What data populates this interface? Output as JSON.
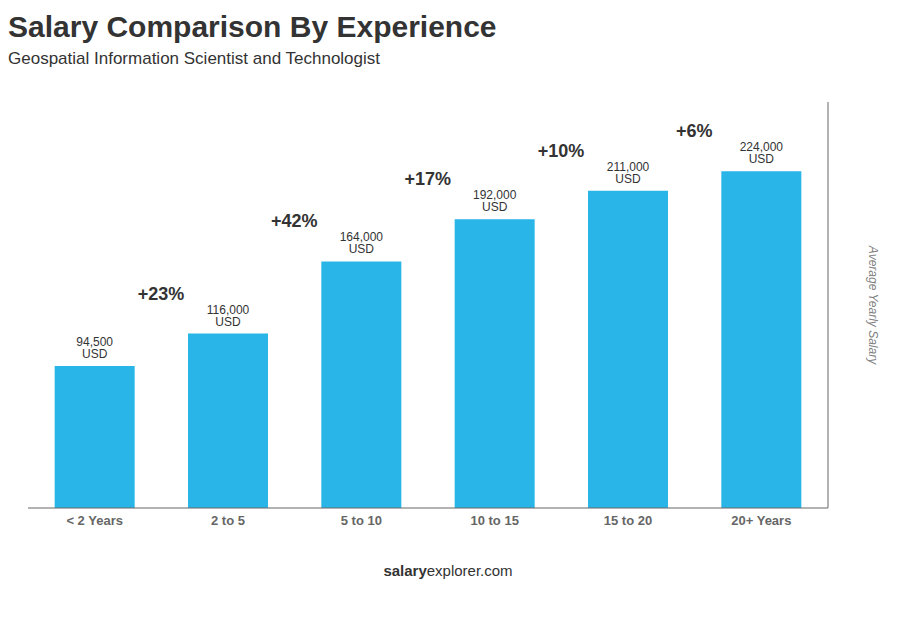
{
  "chart_data": {
    "type": "bar",
    "title": "Salary Comparison By Experience",
    "subtitle": "Geospatial Information Scientist and Technologist",
    "y_label": "Average Yearly Salary",
    "categories": [
      "< 2 Years",
      "2 to 5",
      "5 to 10",
      "10 to 15",
      "15 to 20",
      "20+ Years"
    ],
    "values": [
      94500,
      116000,
      164000,
      192000,
      211000,
      224000
    ],
    "value_labels": [
      "94,500 USD",
      "116,000 USD",
      "164,000 USD",
      "192,000 USD",
      "211,000 USD",
      "224,000 USD"
    ],
    "data_labels": true,
    "color": "#2ab5e8",
    "ylim": [
      0,
      270000
    ],
    "tick_labels": "x",
    "grid": false,
    "annotations": [
      {
        "text": "+23%",
        "category": "2 to 5"
      },
      {
        "text": "+42%",
        "category": "5 to 10"
      },
      {
        "text": "+17%",
        "category": "10 to 15"
      },
      {
        "text": "+10%",
        "category": "15 to 20"
      },
      {
        "text": "+6%",
        "category": "20+ Years"
      }
    ],
    "footer": [
      "salary",
      "explorer.com"
    ]
  }
}
